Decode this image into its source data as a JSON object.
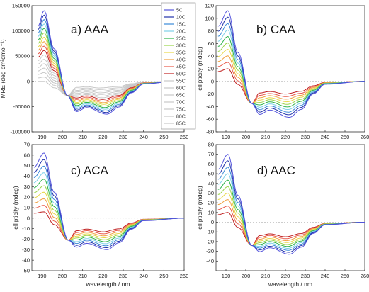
{
  "chart_data": [
    {
      "type": "line",
      "panel_label": "a) AAA",
      "xlabel": "",
      "ylabel": "MRE (deg cm²dmol⁻¹)",
      "xlim": [
        185,
        260
      ],
      "ylim": [
        -100000,
        150000
      ],
      "xticks": [
        190,
        200,
        210,
        220,
        230,
        240,
        250,
        260
      ],
      "yticks": [
        -100000,
        -50000,
        0,
        50000,
        100000,
        150000
      ],
      "curves": {
        "start_x": 188,
        "end_x": 255,
        "min_x": 222,
        "min_x_shift": -4,
        "cross_x": 202.5,
        "cross_y": -28000,
        "peak": [
          140000,
          0
        ],
        "trough": [
          -65000,
          -13000
        ]
      }
    },
    {
      "type": "line",
      "panel_label": "b) CAA",
      "xlabel": "",
      "ylabel": "ellipticity (mdeg)",
      "xlim": [
        185,
        260
      ],
      "ylim": [
        -80,
        120
      ],
      "xticks": [
        190,
        200,
        210,
        220,
        230,
        240,
        250,
        260
      ],
      "yticks": [
        -80,
        -60,
        -40,
        -20,
        0,
        20,
        40,
        60,
        80,
        100,
        120
      ],
      "curves": {
        "start_x": 186,
        "end_x": 260,
        "min_x": 222,
        "min_x_shift": -2,
        "cross_x": 203,
        "cross_y": -35,
        "peak": [
          112,
          20
        ],
        "trough": [
          -57,
          -20
        ]
      }
    },
    {
      "type": "line",
      "panel_label": "c) ACA",
      "xlabel": "wavelength / nm",
      "ylabel": "ellipticity (mdeg)",
      "xlim": [
        185,
        260
      ],
      "ylim": [
        -50,
        70
      ],
      "xticks": [
        190,
        200,
        210,
        220,
        230,
        240,
        250,
        260
      ],
      "yticks": [
        -50,
        -40,
        -30,
        -20,
        -10,
        0,
        10,
        20,
        30,
        40,
        50,
        60,
        70
      ],
      "curves": {
        "start_x": 186,
        "end_x": 260,
        "min_x": 222,
        "min_x_shift": -2,
        "cross_x": 203,
        "cross_y": -21,
        "peak": [
          62,
          6
        ],
        "trough": [
          -30,
          -13
        ]
      }
    },
    {
      "type": "line",
      "panel_label": "d) AAC",
      "xlabel": "wavelength / nm",
      "ylabel": "ellipticity (mdeg)",
      "xlim": [
        185,
        260
      ],
      "ylim": [
        -50,
        80
      ],
      "xticks": [
        190,
        200,
        210,
        220,
        230,
        240,
        250,
        260
      ],
      "yticks": [
        -40,
        -30,
        -20,
        -10,
        0,
        10,
        20,
        30,
        40,
        50,
        60,
        70,
        80
      ],
      "curves": {
        "start_x": 186,
        "end_x": 260,
        "min_x": 222,
        "min_x_shift": -2,
        "cross_x": 203,
        "cross_y": -24,
        "peak": [
          70,
          10
        ],
        "trough": [
          -33,
          -15
        ]
      }
    }
  ],
  "legend": {
    "entries": [
      "5C",
      "10C",
      "15C",
      "20C",
      "25C",
      "30C",
      "35C",
      "40C",
      "45C",
      "50C",
      "55C",
      "60C",
      "65C",
      "70C",
      "75C",
      "80C",
      "85C"
    ],
    "colors": [
      "#5555dd",
      "#2233aa",
      "#3a8ad8",
      "#7ed0e8",
      "#2db34a",
      "#9ad44a",
      "#e8d84a",
      "#f0a040",
      "#e85a4a",
      "#c02020",
      "#c8c8c8",
      "#c8c8c8",
      "#c8c8c8",
      "#c8c8c8",
      "#c8c8c8",
      "#c8c8c8",
      "#c8c8c8"
    ]
  }
}
